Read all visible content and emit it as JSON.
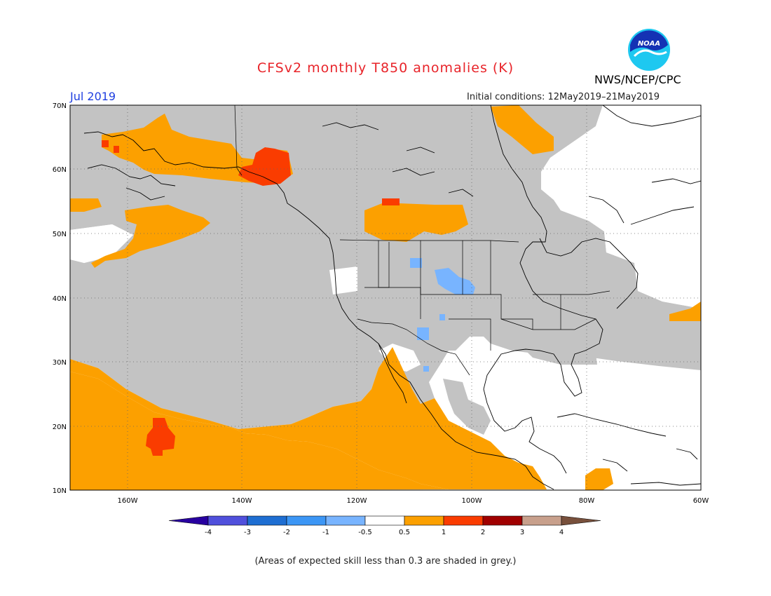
{
  "header": {
    "title": "CFSv2 monthly T850 anomalies (K)",
    "org": "NWS/NCEP/CPC",
    "logo_text": "NOAA",
    "month": "Jul 2019",
    "initial_conditions": "Initial conditions: 12May2019–21May2019"
  },
  "map": {
    "lat_range": [
      10,
      70
    ],
    "lon_range": [
      -170,
      -60
    ],
    "lat_ticks": [
      "10N",
      "20N",
      "30N",
      "40N",
      "50N",
      "60N",
      "70N"
    ],
    "lon_ticks": [
      "160W",
      "140W",
      "120W",
      "100W",
      "80W",
      "60W"
    ],
    "grid": "dotted",
    "colors": {
      "grey": "#c3c3c3",
      "orange": "#fca000",
      "red": "#fa3c00",
      "lightblue": "#78b4ff"
    }
  },
  "colorbar": {
    "labels": [
      "-4",
      "-3",
      "-2",
      "-1",
      "-0.5",
      "0.5",
      "1",
      "2",
      "3",
      "4"
    ],
    "colors": [
      "#2800a0",
      "#5050dc",
      "#1e6ed2",
      "#3c96f5",
      "#78b4ff",
      "#ffffff",
      "#fca000",
      "#fa3c00",
      "#a00000",
      "#c8a08c",
      "#78503c"
    ]
  },
  "footer": {
    "note": "(Areas of expected skill less than 0.3 are shaded in grey.)"
  }
}
